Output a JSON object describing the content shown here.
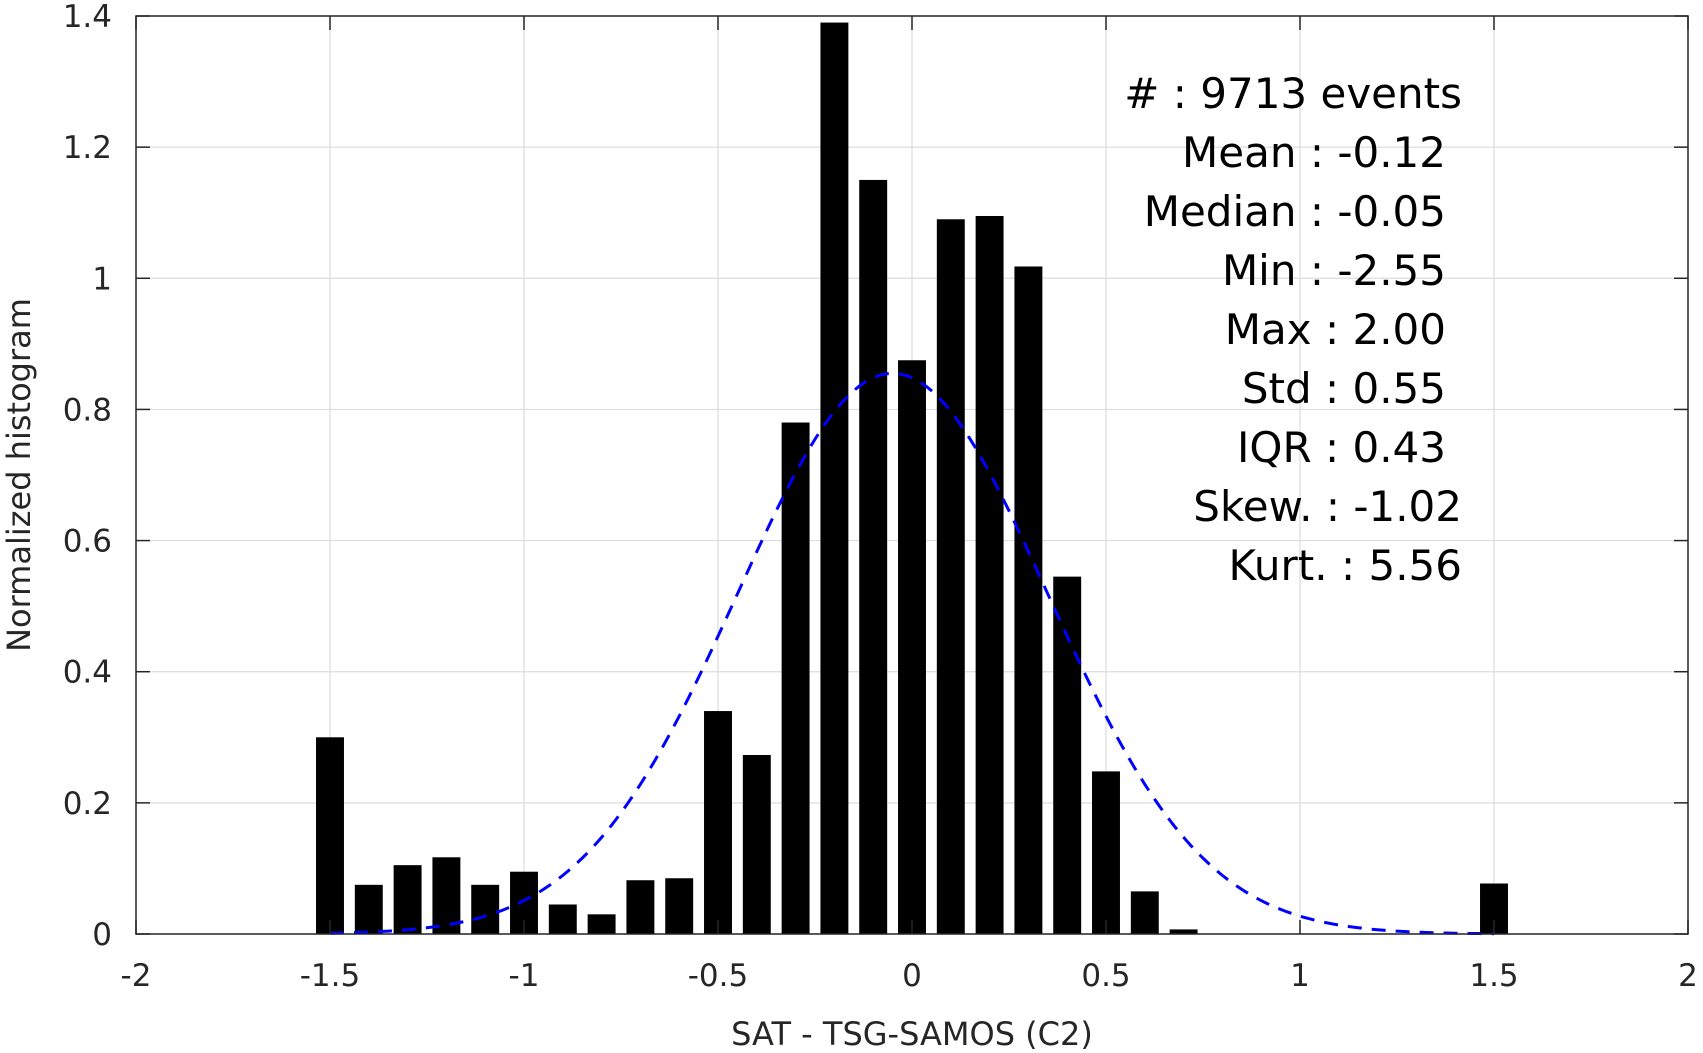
{
  "chart_data": {
    "type": "bar",
    "xlabel": "SAT - TSG-SAMOS (C2)",
    "ylabel": "Normalized histogram",
    "xlim": [
      -2,
      2
    ],
    "ylim": [
      0,
      1.4
    ],
    "grid": true,
    "x_ticks": [
      "-2",
      "-1.5",
      "-1",
      "-0.5",
      "0",
      "0.5",
      "1",
      "1.5",
      "2"
    ],
    "y_ticks": [
      "0",
      "0.2",
      "0.4",
      "0.6",
      "0.8",
      "1",
      "1.2",
      "1.4"
    ],
    "bin_width": 0.1,
    "bars": {
      "x": [
        -1.5,
        -1.4,
        -1.3,
        -1.2,
        -1.1,
        -1.0,
        -0.9,
        -0.8,
        -0.7,
        -0.6,
        -0.5,
        -0.4,
        -0.3,
        -0.2,
        -0.1,
        0.0,
        0.1,
        0.2,
        0.3,
        0.4,
        0.5,
        0.6,
        0.7,
        1.5
      ],
      "values": [
        0.3,
        0.075,
        0.105,
        0.117,
        0.075,
        0.095,
        0.045,
        0.03,
        0.082,
        0.085,
        0.34,
        0.273,
        0.78,
        1.39,
        1.15,
        0.875,
        1.09,
        1.095,
        1.018,
        0.545,
        0.248,
        0.065,
        0.007,
        0.077
      ],
      "color": "#000000"
    },
    "fit_curve": {
      "style": "dashed",
      "color": "#0000ff",
      "mean": -0.05,
      "std": 0.4,
      "peak": 0.855,
      "x_range": [
        -1.5,
        1.5
      ]
    },
    "stats": [
      {
        "label": "#  : 9713 events"
      },
      {
        "label": "Mean : -0.12"
      },
      {
        "label": "Median : -0.05"
      },
      {
        "label": "Min : -2.55"
      },
      {
        "label": "Max : 2.00"
      },
      {
        "label": "Std : 0.55"
      },
      {
        "label": "IQR : 0.43"
      },
      {
        "label": "Skew. : -1.02"
      },
      {
        "label": "Kurt. : 5.56"
      }
    ]
  }
}
